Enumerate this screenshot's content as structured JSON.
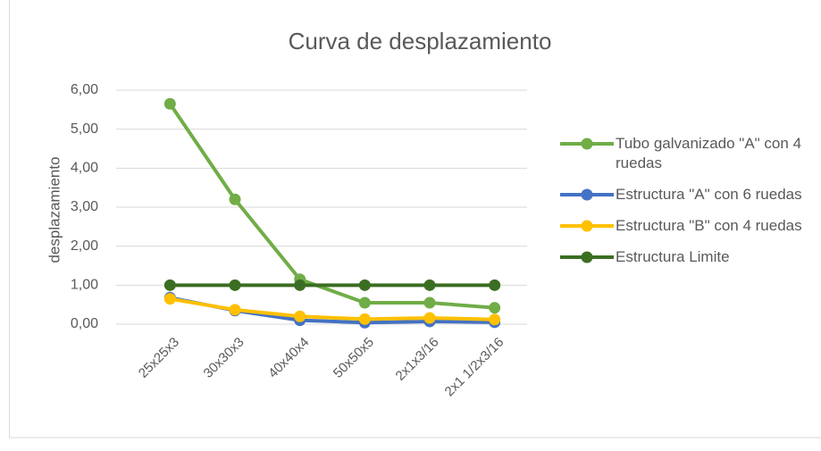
{
  "chart_data": {
    "type": "line",
    "title": "Curva de desplazamiento",
    "y_label": "desplazamiento",
    "categories": [
      "25x25x3",
      "30x30x3",
      "40x40x4",
      "50x50x5",
      "2x1x3/16",
      "2x1 1/2x3/16"
    ],
    "series": [
      {
        "name": "Tubo galvanizado \"A\" con 4 ruedas",
        "color": "#70ad47",
        "values": [
          5.65,
          3.2,
          1.15,
          0.55,
          0.55,
          0.42
        ]
      },
      {
        "name": "Estructura \"A\" con 6 ruedas",
        "color": "#4472c4",
        "values": [
          0.68,
          0.35,
          0.1,
          0.04,
          0.07,
          0.05
        ]
      },
      {
        "name": "Estructura \"B\" con 4 ruedas",
        "color": "#ffc000",
        "values": [
          0.65,
          0.37,
          0.2,
          0.13,
          0.16,
          0.12
        ]
      },
      {
        "name": "Estructura Limite",
        "color": "#3b6e22",
        "values": [
          1,
          1,
          1,
          1,
          1,
          1
        ]
      }
    ],
    "ylim": [
      0,
      6
    ],
    "yticks": [
      {
        "value": 0,
        "label": "0,00"
      },
      {
        "value": 1,
        "label": "1,00"
      },
      {
        "value": 2,
        "label": "2,00"
      },
      {
        "value": 3,
        "label": "3,00"
      },
      {
        "value": 4,
        "label": "4,00"
      },
      {
        "value": 5,
        "label": "5,00"
      },
      {
        "value": 6,
        "label": "6,00"
      }
    ],
    "grid": true,
    "legend": "right"
  }
}
